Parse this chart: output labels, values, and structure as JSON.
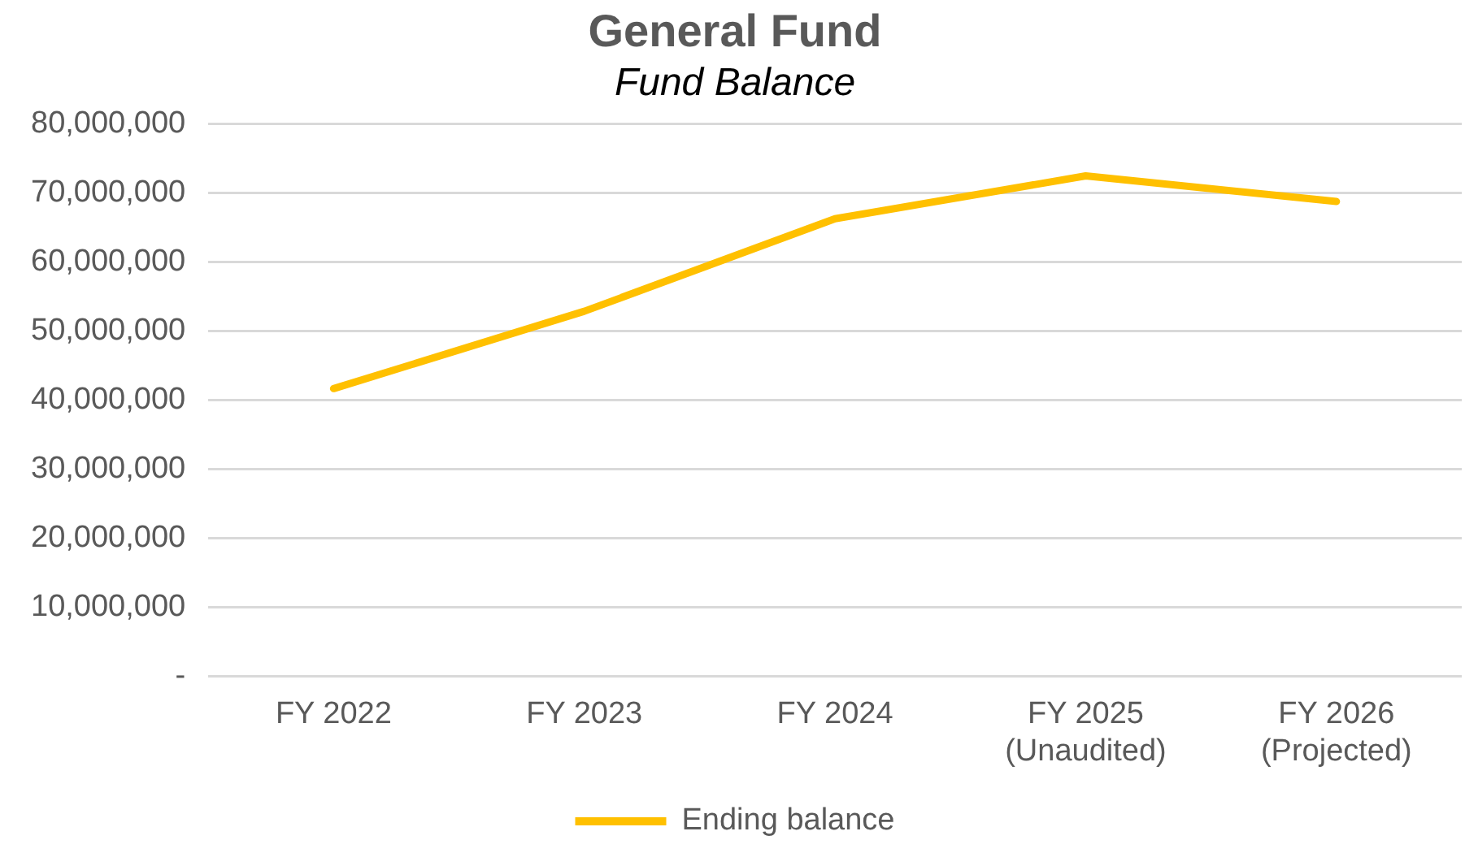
{
  "chart_data": {
    "type": "line",
    "title": "General Fund",
    "subtitle": "Fund Balance",
    "categories": [
      "FY 2022",
      "FY 2023",
      "FY 2024",
      "FY 2025\n(Unaudited)",
      "FY 2026\n(Projected)"
    ],
    "series": [
      {
        "name": "Ending balance",
        "color": "#ffc000",
        "values": [
          41700000,
          52900000,
          66300000,
          72500000,
          68800000
        ]
      }
    ],
    "ylim": [
      0,
      80000000
    ],
    "yticks": [
      {
        "value": 0,
        "label": "-"
      },
      {
        "value": 10000000,
        "label": "10,000,000"
      },
      {
        "value": 20000000,
        "label": "20,000,000"
      },
      {
        "value": 30000000,
        "label": "30,000,000"
      },
      {
        "value": 40000000,
        "label": "40,000,000"
      },
      {
        "value": 50000000,
        "label": "50,000,000"
      },
      {
        "value": 60000000,
        "label": "60,000,000"
      },
      {
        "value": 70000000,
        "label": "70,000,000"
      },
      {
        "value": 80000000,
        "label": "80,000,000"
      }
    ],
    "grid": "y",
    "legend": "bottom",
    "marker": "none",
    "line_style": "solid"
  }
}
